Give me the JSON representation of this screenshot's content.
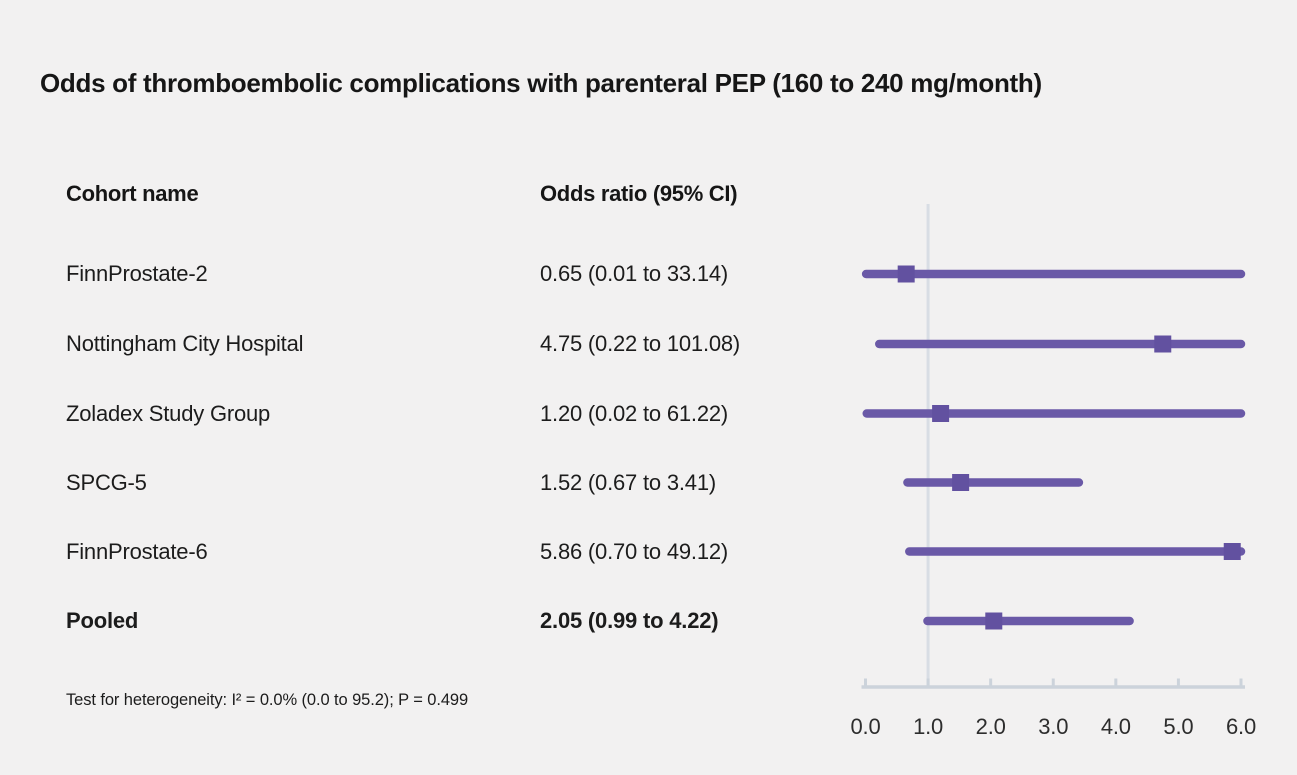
{
  "title": "Odds of thromboembolic complications with parenteral PEP (160 to 240 mg/month)",
  "table": {
    "name_header": "Cohort name",
    "or_header": "Odds ratio (95% CI)"
  },
  "footnote": "Test for heterogeneity: I² = 0.0% (0.0 to 95.2); P = 0.499",
  "colors": {
    "background": "#f2f1f1",
    "text": "#1c1c1c",
    "bar": "#6a59a7",
    "marker": "#6251a0",
    "refline": "#d8dde4",
    "axis": "#ccd3db"
  },
  "chart_data": {
    "type": "forest",
    "title": "Odds of thromboembolic complications with parenteral PEP (160 to 240 mg/month)",
    "xlabel": "Odds ratio (95% CI)",
    "xlim": [
      0.0,
      6.0
    ],
    "tick_values": [
      0,
      1,
      2,
      3,
      4,
      5,
      6
    ],
    "tick_labels": [
      "0.0",
      "1.0",
      "2.0",
      "3.0",
      "4.0",
      "5.0",
      "6.0"
    ],
    "reference_line": 1.0,
    "ci_clamped_to_xlim": true,
    "grid": false,
    "legend": false,
    "rows": [
      {
        "name": "FinnProstate-2",
        "or_label": "0.65 (0.01 to 33.14)",
        "est": 0.65,
        "lo": 0.01,
        "hi": 33.14,
        "bold": false
      },
      {
        "name": "Nottingham City Hospital",
        "or_label": "4.75 (0.22 to 101.08)",
        "est": 4.75,
        "lo": 0.22,
        "hi": 101.08,
        "bold": false
      },
      {
        "name": "Zoladex Study Group",
        "or_label": "1.20 (0.02 to 61.22)",
        "est": 1.2,
        "lo": 0.02,
        "hi": 61.22,
        "bold": false
      },
      {
        "name": "SPCG-5",
        "or_label": "1.52 (0.67 to 3.41)",
        "est": 1.52,
        "lo": 0.67,
        "hi": 3.41,
        "bold": false
      },
      {
        "name": "FinnProstate-6",
        "or_label": "5.86 (0.70 to 49.12)",
        "est": 5.86,
        "lo": 0.7,
        "hi": 49.12,
        "bold": false
      },
      {
        "name": "Pooled",
        "or_label": "2.05 (0.99 to 4.22)",
        "est": 2.05,
        "lo": 0.99,
        "hi": 4.22,
        "bold": true
      }
    ],
    "footnote": "Test for heterogeneity: I² = 0.0% (0.0 to 95.2); P = 0.499"
  }
}
